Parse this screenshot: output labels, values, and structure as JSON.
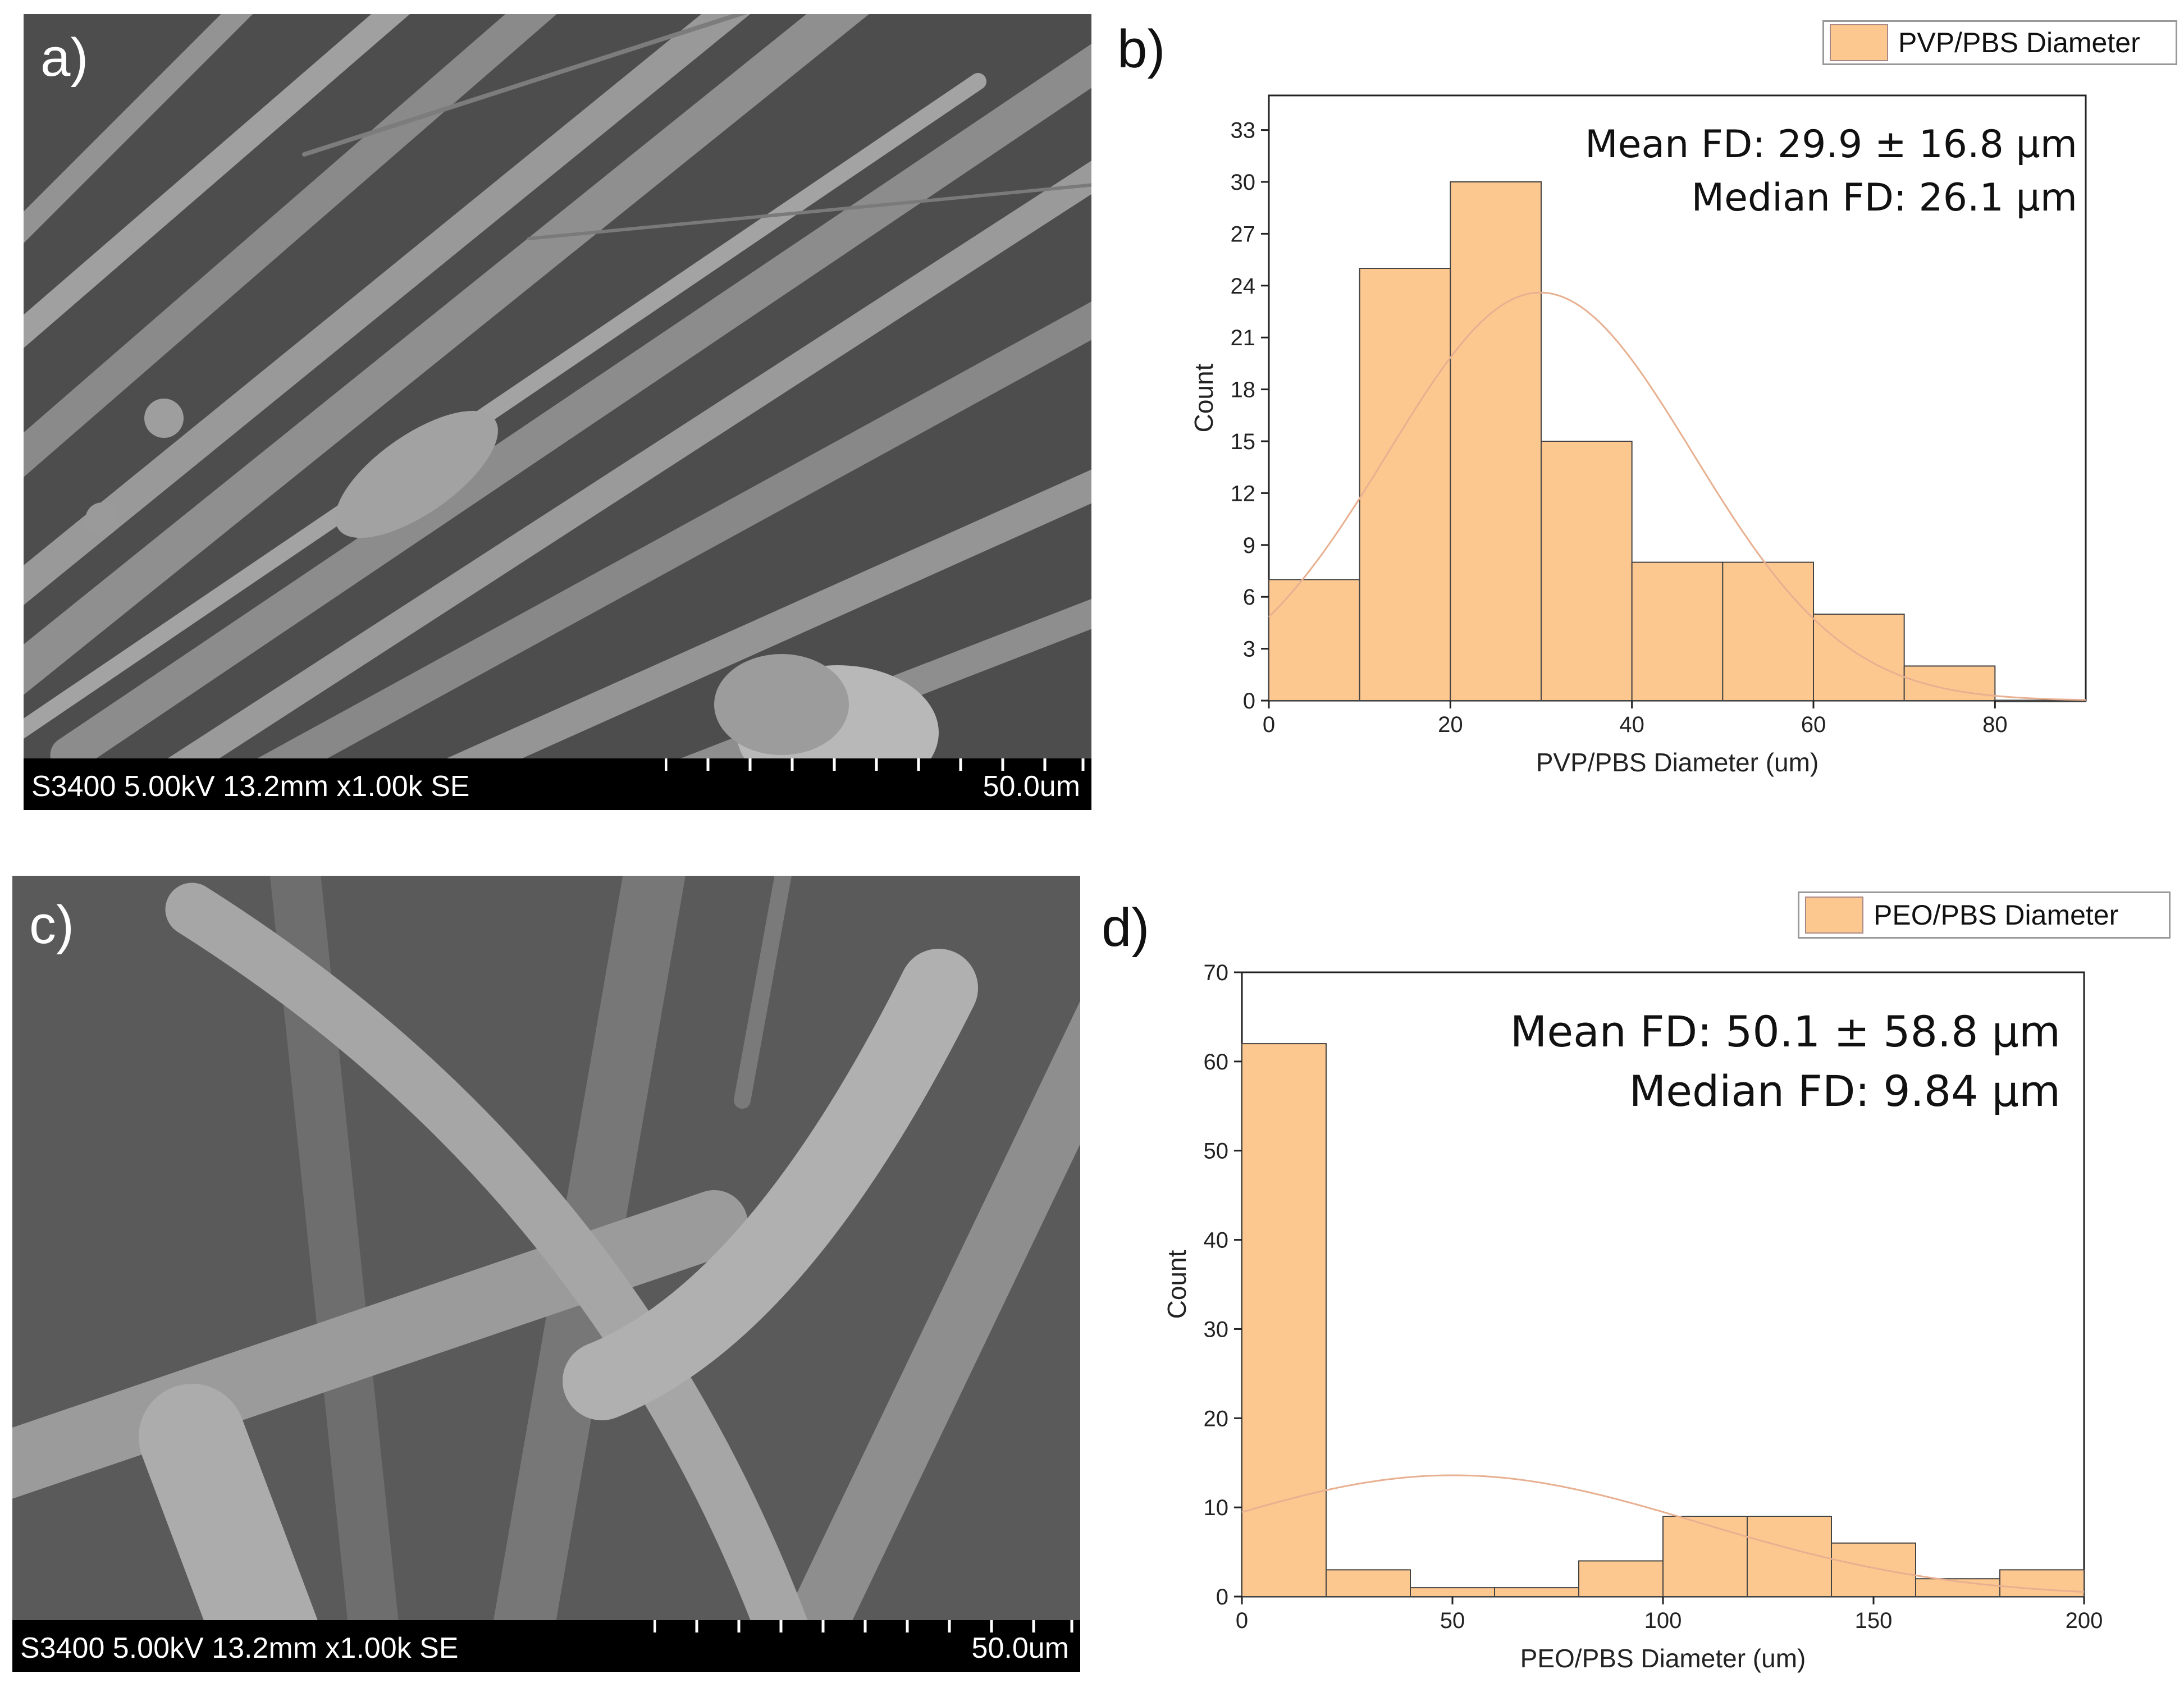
{
  "panel_a": {
    "letter": "a)",
    "info": "S3400 5.00kV 13.2mm x1.00k SE",
    "scale": "50.0um"
  },
  "panel_b_label": "b)",
  "panel_c": {
    "letter": "c)",
    "info": "S3400 5.00kV 13.2mm x1.00k SE",
    "scale": "50.0um"
  },
  "panel_d_label": "d)",
  "colors": {
    "bar": "#fcc890",
    "bar_edge": "#444444",
    "curve": "#e8b090"
  },
  "chart_data": [
    {
      "type": "bar",
      "legend_entry": "PVP/PBS Diameter",
      "xlabel": "PVP/PBS Diameter (um)",
      "ylabel": "Count",
      "xlim": [
        0,
        90
      ],
      "ylim": [
        0,
        35
      ],
      "xticks": [
        0,
        20,
        40,
        60,
        80
      ],
      "yticks": [
        0,
        3,
        6,
        9,
        12,
        15,
        18,
        21,
        24,
        27,
        30,
        33
      ],
      "bins": [
        [
          0,
          10
        ],
        [
          10,
          20
        ],
        [
          20,
          30
        ],
        [
          30,
          40
        ],
        [
          40,
          50
        ],
        [
          50,
          60
        ],
        [
          60,
          70
        ],
        [
          70,
          80
        ],
        [
          80,
          90
        ]
      ],
      "values": [
        7,
        25,
        30,
        15,
        8,
        8,
        5,
        2,
        0
      ],
      "annotations": [
        "Mean FD: 29.9 ± 16.8 µm",
        "Median FD: 26.1 µm"
      ],
      "fit": {
        "mean": 29.9,
        "sd": 16.8,
        "peak": 23.6
      },
      "legend_position": "top-right"
    },
    {
      "type": "bar",
      "legend_entry": "PEO/PBS Diameter",
      "xlabel": "PEO/PBS Diameter (um)",
      "ylabel": "Count",
      "xlim": [
        0,
        200
      ],
      "ylim": [
        0,
        70
      ],
      "xticks": [
        0,
        50,
        100,
        150,
        200
      ],
      "yticks": [
        0,
        10,
        20,
        30,
        40,
        50,
        60,
        70
      ],
      "bins": [
        [
          0,
          20
        ],
        [
          20,
          40
        ],
        [
          40,
          60
        ],
        [
          60,
          80
        ],
        [
          80,
          100
        ],
        [
          100,
          120
        ],
        [
          120,
          140
        ],
        [
          140,
          160
        ],
        [
          160,
          180
        ],
        [
          180,
          200
        ]
      ],
      "values": [
        62,
        3,
        1,
        1,
        4,
        9,
        9,
        6,
        2,
        3
      ],
      "annotations": [
        "Mean FD: 50.1 ± 58.8 µm",
        "Median FD: 9.84 µm"
      ],
      "fit": {
        "mean": 50.1,
        "sd": 58.8,
        "peak": 13.6
      },
      "legend_position": "top-right"
    }
  ]
}
